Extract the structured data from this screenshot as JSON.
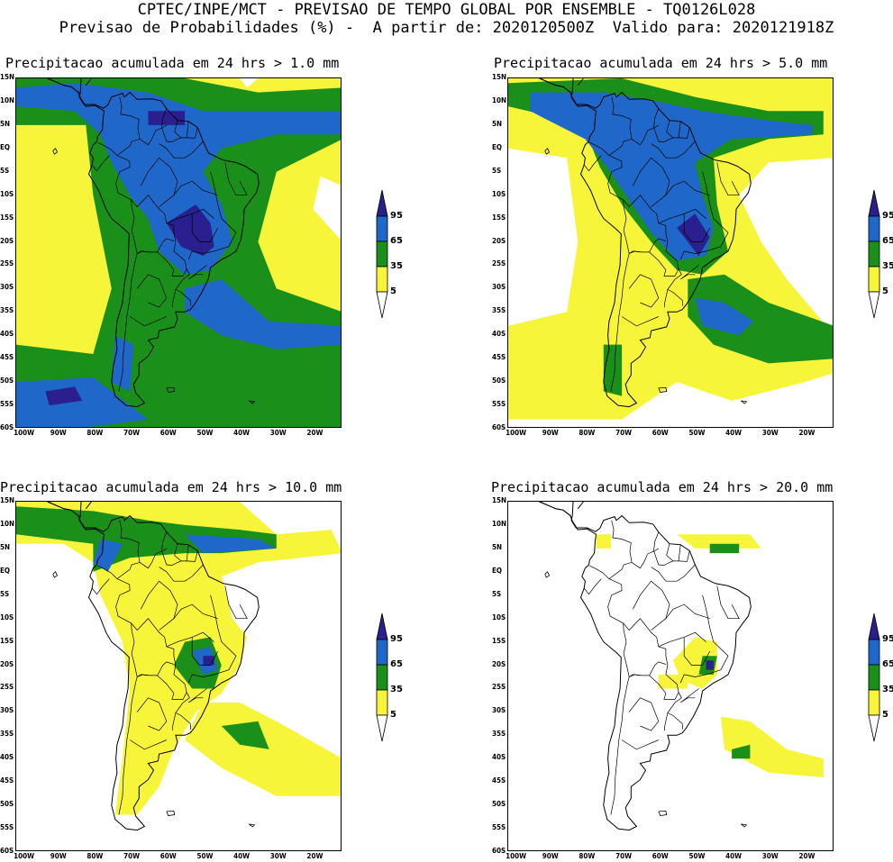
{
  "header": {
    "line1": "CPTEC/INPE/MCT - PREVISAO DE TEMPO GLOBAL POR ENSEMBLE - TQ0126L028",
    "line2": "Previsao de Probabilidades (%) -  A partir de: 2020120500Z  Valido para: 2020121918Z"
  },
  "y_ticks": [
    "15N",
    "10N",
    "5N",
    "EQ",
    "5S",
    "10S",
    "15S",
    "20S",
    "25S",
    "30S",
    "35S",
    "40S",
    "45S",
    "50S",
    "55S",
    "60S"
  ],
  "x_ticks": [
    "100W",
    "90W",
    "80W",
    "70W",
    "60W",
    "50W",
    "40W",
    "30W",
    "20W"
  ],
  "legend": {
    "levels": [
      "95",
      "65",
      "35",
      "5"
    ],
    "colors": {
      "c95": "#2a1f8f",
      "c65": "#1f67c8",
      "c35": "#1a8f1a",
      "c5": "#f7f53a"
    }
  },
  "panels": [
    {
      "title": "Precipitacao acumulada em 24 hrs > 1.0 mm",
      "threshold": "1.0"
    },
    {
      "title": "Precipitacao acumulada em 24 hrs > 5.0 mm",
      "threshold": "5.0"
    },
    {
      "title": "Precipitacao acumulada em 24 hrs > 10.0 mm",
      "threshold": "10.0"
    },
    {
      "title": "Precipitacao acumulada em 24 hrs > 20.0 mm",
      "threshold": "20.0"
    }
  ]
}
